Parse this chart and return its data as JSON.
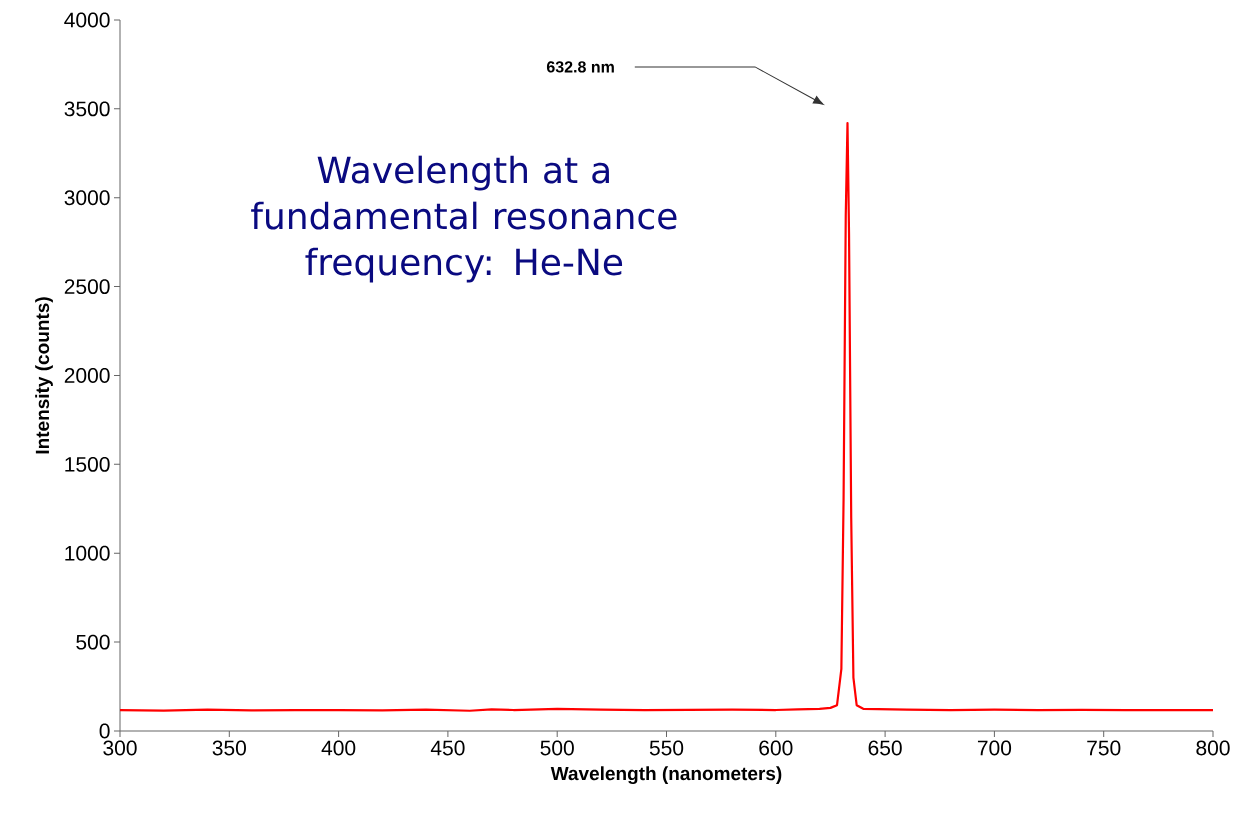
{
  "chart_data": {
    "type": "line",
    "xlabel": "Wavelength (nanometers)",
    "ylabel": "Intensity (counts)",
    "x": [
      300,
      320,
      340,
      360,
      380,
      400,
      420,
      440,
      460,
      470,
      480,
      500,
      520,
      540,
      560,
      580,
      600,
      610,
      620,
      625,
      628,
      630,
      631,
      632,
      632.8,
      633.5,
      634.5,
      635.5,
      637,
      640,
      660,
      680,
      700,
      720,
      740,
      760,
      780,
      800
    ],
    "series": [
      {
        "color": "#ff0000",
        "values": [
          118,
          115,
          120,
          116,
          118,
          117,
          116,
          120,
          114,
          122,
          118,
          125,
          120,
          118,
          119,
          120,
          118,
          122,
          125,
          130,
          145,
          350,
          1300,
          2900,
          3420,
          2800,
          1200,
          300,
          145,
          125,
          120,
          118,
          120,
          117,
          119,
          118,
          118,
          118
        ]
      }
    ],
    "xlim": [
      300,
      800
    ],
    "ylim": [
      0,
      4000
    ],
    "xticks": [
      300,
      350,
      400,
      450,
      500,
      550,
      600,
      650,
      700,
      750,
      800
    ],
    "yticks": [
      0,
      500,
      1000,
      1500,
      2000,
      2500,
      3000,
      3500,
      4000
    ],
    "grid": false,
    "marker": "none",
    "line_style": "solid",
    "annotations": [
      "632.8 nm",
      "Wavelength at a fundamental resonance frequency: He-Ne"
    ]
  }
}
